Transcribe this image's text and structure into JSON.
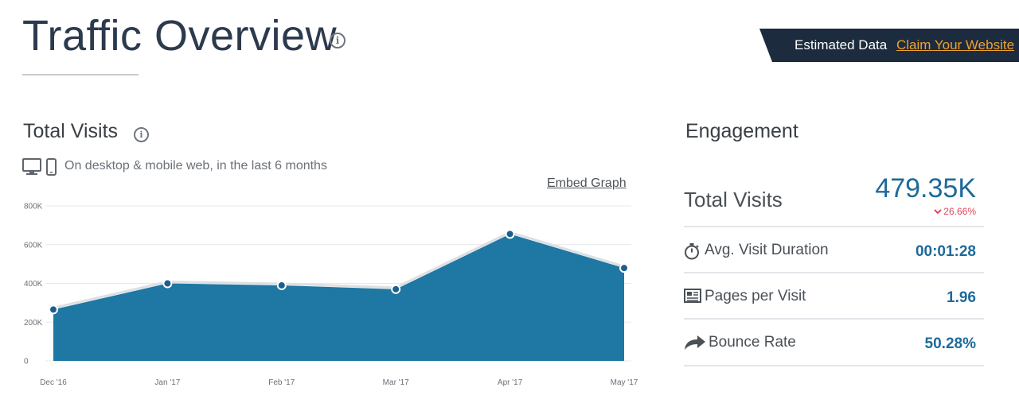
{
  "header": {
    "title": "Traffic Overview",
    "estimated_label": "Estimated Data",
    "claim_link": "Claim Your Website"
  },
  "visits_section": {
    "title": "Total Visits",
    "description": "On desktop & mobile web, in the last 6 months",
    "embed_link": "Embed Graph"
  },
  "chart_data": {
    "type": "area",
    "categories": [
      "Dec '16",
      "Jan '17",
      "Feb '17",
      "Mar '17",
      "Apr '17",
      "May '17"
    ],
    "values": [
      265000,
      400000,
      390000,
      370000,
      655000,
      479350
    ],
    "ylim": [
      0,
      800000
    ],
    "yticks": [
      "0",
      "200K",
      "400K",
      "600K",
      "800K"
    ],
    "ytick_values": [
      0,
      200000,
      400000,
      600000,
      800000
    ],
    "grid": true,
    "fill_color": "#1f77a3"
  },
  "engagement": {
    "title": "Engagement",
    "total_visits_label": "Total Visits",
    "total_visits_value": "479.35K",
    "total_visits_change": "26.66%",
    "metrics": [
      {
        "label": "Avg. Visit Duration",
        "value": "00:01:28",
        "icon": "stopwatch-icon"
      },
      {
        "label": "Pages per Visit",
        "value": "1.96",
        "icon": "pages-icon"
      },
      {
        "label": "Bounce Rate",
        "value": "50.28%",
        "icon": "bounce-arrow-icon"
      }
    ]
  },
  "colors": {
    "accent": "#1d6a9a",
    "negative": "#e0475a",
    "banner": "#1c2b3e",
    "link": "#f0a12b"
  }
}
